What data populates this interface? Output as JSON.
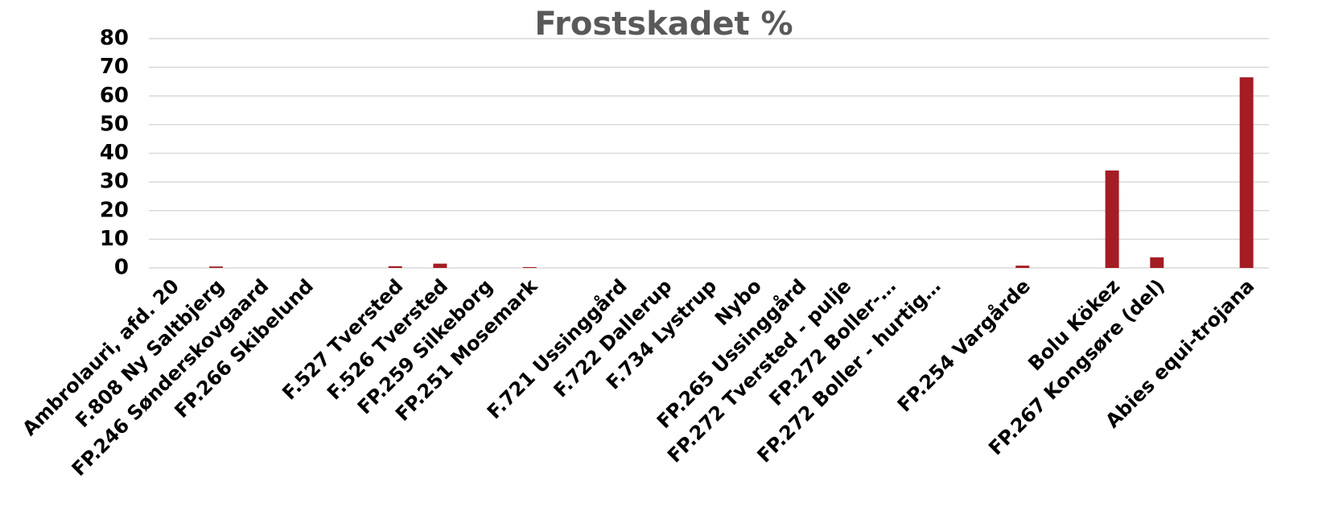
{
  "chart_data": {
    "type": "bar",
    "title": "Frostskadet %",
    "categories": [
      "Ambrolauri, afd. 20",
      "F.808 Ny Saltbjerg",
      "FP.246 Sønderskovgaard",
      "FP.266 Skibelund",
      null,
      "F.527 Tversted",
      "F.526 Tversted",
      "FP.259 Silkeborg",
      "FP.251 Mosemark",
      null,
      "F.721 Ussinggård",
      "F.722 Dallerup",
      "F.734 Lystrup",
      "Nybo",
      "FP.265 Ussinggård",
      "FP.272 Tversted - pulje",
      "FP.272 Boller-…",
      "FP.272 Boller - hurtig…",
      null,
      "FP.254 Vargårde",
      null,
      "Bolu Kökez",
      "FP.267 Kongsøre (del)",
      null,
      "Abies equi-trojana"
    ],
    "values": [
      0,
      0.5,
      0,
      0,
      null,
      0.6,
      1.5,
      0,
      0.3,
      null,
      0,
      0,
      0,
      0,
      0,
      0,
      0,
      0,
      null,
      0.8,
      null,
      34,
      3.7,
      null,
      66.5
    ],
    "color": "#a51c24",
    "ylim": [
      0,
      80
    ],
    "yticks": [
      0,
      10,
      20,
      30,
      40,
      50,
      60,
      70,
      80
    ],
    "grid": true
  }
}
